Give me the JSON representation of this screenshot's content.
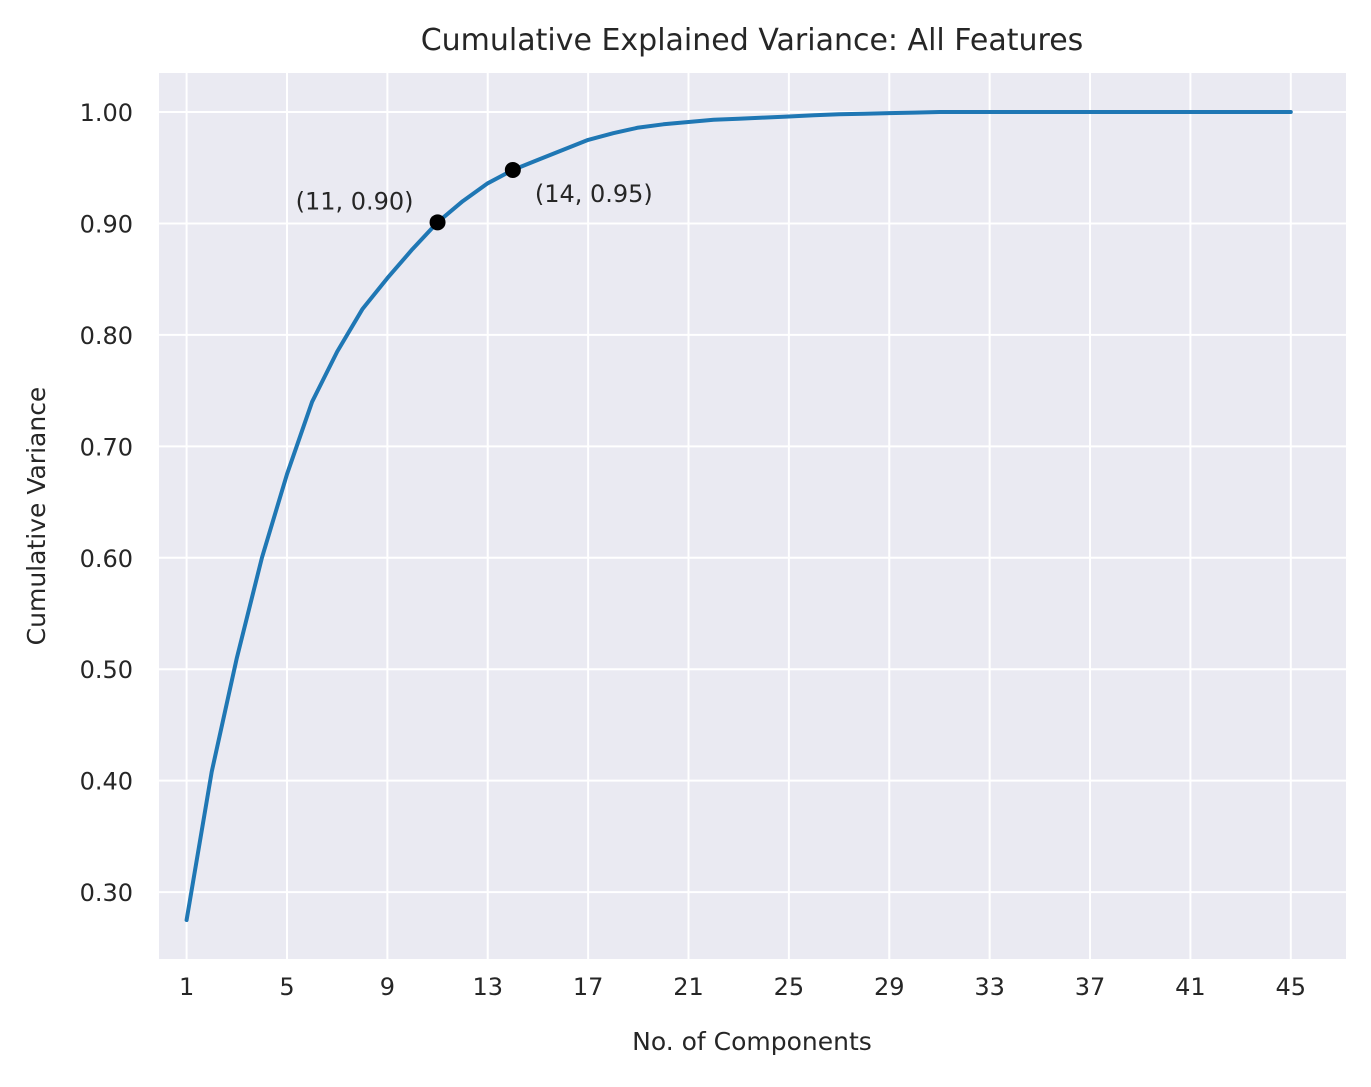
{
  "chart_data": {
    "type": "line",
    "title": "Cumulative Explained Variance: All Features",
    "xlabel": "No. of Components",
    "ylabel": "Cumulative Variance",
    "xlim": [
      -0.1,
      47.2
    ],
    "ylim": [
      0.24,
      1.035
    ],
    "grid": true,
    "legend": "none",
    "colors": {
      "background": "#eaeaf2",
      "grid": "#ffffff",
      "line": "#1f77b4",
      "marker": "#000000"
    },
    "x_ticks": [
      1,
      5,
      9,
      13,
      17,
      21,
      25,
      29,
      33,
      37,
      41,
      45
    ],
    "x_tick_labels": [
      "1",
      "5",
      "9",
      "13",
      "17",
      "21",
      "25",
      "29",
      "33",
      "37",
      "41",
      "45"
    ],
    "y_ticks": [
      0.3,
      0.4,
      0.5,
      0.6,
      0.7,
      0.8,
      0.9,
      1.0
    ],
    "y_tick_labels": [
      "0.30",
      "0.40",
      "0.50",
      "0.60",
      "0.70",
      "0.80",
      "0.90",
      "1.00"
    ],
    "series": [
      {
        "x": [
          1,
          2,
          3,
          4,
          5,
          6,
          7,
          8,
          9,
          10,
          11,
          12,
          13,
          14,
          15,
          16,
          17,
          18,
          19,
          20,
          21,
          22,
          23,
          24,
          25,
          26,
          27,
          28,
          29,
          30,
          31,
          32,
          33,
          34,
          35,
          36,
          37,
          38,
          39,
          40,
          41,
          42,
          43,
          44,
          45
        ],
        "y": [
          0.275,
          0.408,
          0.51,
          0.6,
          0.675,
          0.74,
          0.785,
          0.823,
          0.851,
          0.877,
          0.901,
          0.92,
          0.936,
          0.948,
          0.957,
          0.966,
          0.975,
          0.981,
          0.986,
          0.989,
          0.991,
          0.993,
          0.994,
          0.995,
          0.996,
          0.997,
          0.998,
          0.9985,
          0.999,
          0.9995,
          1.0,
          1.0,
          1.0,
          1.0,
          1.0,
          1.0,
          1.0,
          1.0,
          1.0,
          1.0,
          1.0,
          1.0,
          1.0,
          1.0,
          1.0
        ]
      }
    ],
    "annotations": [
      {
        "x": 11,
        "y": 0.901,
        "label": "(11, 0.90)",
        "position": "upper-left"
      },
      {
        "x": 14,
        "y": 0.948,
        "label": "(14, 0.95)",
        "position": "lower-right"
      }
    ]
  }
}
